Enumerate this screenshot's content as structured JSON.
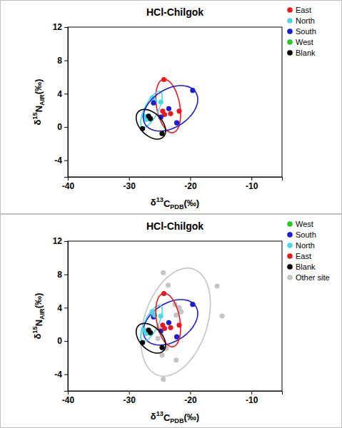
{
  "chart_data": [
    {
      "type": "scatter",
      "title": "HCl-Chilgok",
      "x_label": "δ13CPDB(‰)",
      "y_label": "δ15NAIR(‰)",
      "xlim": [
        -40,
        -5
      ],
      "xticks": [
        -40,
        -30,
        -20,
        -10
      ],
      "ylim": [
        -6,
        12
      ],
      "yticks": [
        -4,
        0,
        4,
        8,
        12
      ],
      "legend": "right",
      "series": [
        {
          "name": "East",
          "color": "#e8191f",
          "x": [
            -24.3,
            -24.5,
            -23.2,
            -21.8,
            -24.2
          ],
          "y": [
            5.7,
            1.9,
            1.6,
            1.9,
            1.5
          ]
        },
        {
          "name": "North",
          "color": "#4fd6e3",
          "x": [
            -26.2,
            -25.8,
            -24.8,
            -27.5,
            -27.2,
            -26.5
          ],
          "y": [
            3.5,
            3.1,
            3.0,
            1.3,
            0.9,
            0.9
          ]
        },
        {
          "name": "South",
          "color": "#1c1cd0",
          "x": [
            -19.6,
            -26.0,
            -24.8,
            -22.2,
            -23.5
          ],
          "y": [
            4.4,
            2.9,
            1.2,
            0.5,
            2.2
          ]
        },
        {
          "name": "West",
          "color": "#22cc22",
          "x": [],
          "y": []
        },
        {
          "name": "Blank",
          "color": "#000000",
          "x": [
            -26.8,
            -27.8,
            -24.6,
            -26.5
          ],
          "y": [
            1.3,
            -0.2,
            -0.8,
            1.0
          ]
        }
      ]
    },
    {
      "type": "scatter",
      "title": "HCl-Chilgok",
      "x_label": "δ13CPDB(‰)",
      "y_label": "δ15NAIR(‰)",
      "xlim": [
        -40,
        -5
      ],
      "xticks": [
        -40,
        -30,
        -20,
        -10
      ],
      "ylim": [
        -6,
        12
      ],
      "yticks": [
        -4,
        0,
        4,
        8,
        12
      ],
      "legend": "right",
      "series": [
        {
          "name": "West",
          "color": "#22cc22",
          "x": [],
          "y": []
        },
        {
          "name": "South",
          "color": "#1c1cd0",
          "x": [
            -19.6,
            -26.0,
            -24.8,
            -22.2,
            -23.5
          ],
          "y": [
            4.4,
            2.9,
            1.2,
            0.5,
            2.2
          ]
        },
        {
          "name": "North",
          "color": "#4fd6e3",
          "x": [
            -26.2,
            -25.8,
            -24.8,
            -27.5,
            -27.2,
            -26.5
          ],
          "y": [
            3.5,
            3.1,
            3.0,
            1.3,
            0.9,
            0.9
          ]
        },
        {
          "name": "East",
          "color": "#e8191f",
          "x": [
            -24.3,
            -24.5,
            -23.2,
            -21.8,
            -24.2
          ],
          "y": [
            5.7,
            1.9,
            1.6,
            1.9,
            1.5
          ]
        },
        {
          "name": "Blank",
          "color": "#000000",
          "x": [
            -26.8,
            -27.8,
            -24.6,
            -26.5
          ],
          "y": [
            1.3,
            -0.2,
            -0.8,
            1.0
          ]
        },
        {
          "name": "Other site",
          "color": "#c4c4c4",
          "x": [
            -24.4,
            -23.6,
            -22.5,
            -21.8,
            -21.5,
            -22.3,
            -15.6,
            -14.8,
            -23.5,
            -25.2,
            -22.3,
            -24.6,
            -23.9,
            -24.4,
            -25.3
          ],
          "y": [
            8.2,
            6.7,
            4.4,
            4.0,
            3.5,
            3.1,
            6.6,
            3.0,
            2.2,
            1.5,
            -2.3,
            -1.7,
            -0.9,
            -4.6,
            0.3
          ]
        }
      ]
    }
  ]
}
